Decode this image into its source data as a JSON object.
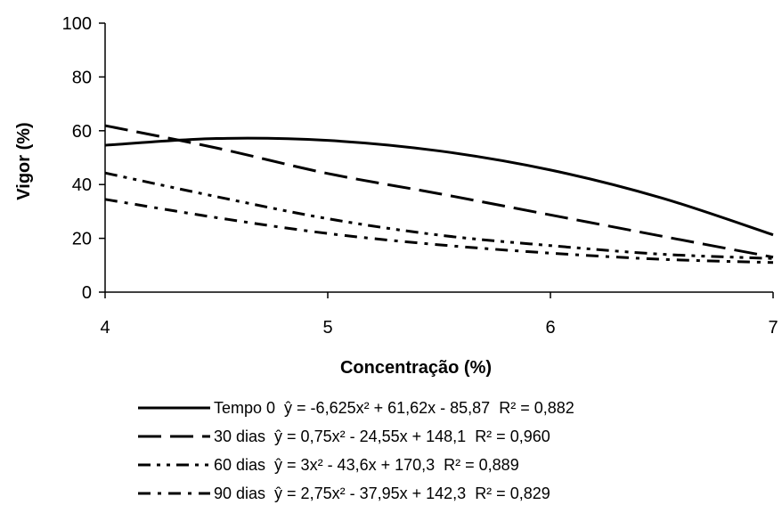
{
  "chart_data": {
    "type": "line",
    "title": "",
    "xlabel": "Concentração (%)",
    "ylabel": "Vigor (%)",
    "xlim": [
      4,
      7
    ],
    "ylim": [
      0,
      100
    ],
    "x_ticks": [
      "4",
      "5",
      "6",
      "7"
    ],
    "y_ticks": [
      "0",
      "20",
      "40",
      "60",
      "80",
      "100"
    ],
    "grid": false,
    "legend_position": "bottom",
    "x": [
      4.0,
      4.5,
      5.0,
      5.5,
      6.0,
      6.5,
      7.0
    ],
    "series": [
      {
        "name": "Tempo 0",
        "equation": "ŷ = -6,625x² + 61,62x - 85,87",
        "r2": "R² = 0,882",
        "dash": "solid",
        "values": [
          54.6,
          57.1,
          56.4,
          52.5,
          45.4,
          35.0,
          21.3
        ]
      },
      {
        "name": "30 dias",
        "equation": "ŷ = 0,75x² - 24,55x + 148,1",
        "r2": "R² = 0,960",
        "dash": "long-dash",
        "values": [
          61.9,
          53.6,
          44.1,
          36.6,
          28.7,
          20.8,
          13.0
        ]
      },
      {
        "name": "60 dias",
        "equation": "ŷ = 3x² - 43,6x + 170,3",
        "r2": "R² = 0,889",
        "dash": "dash-dot-dot",
        "values": [
          44.3,
          35.5,
          27.3,
          21.2,
          17.3,
          14.1,
          12.5
        ]
      },
      {
        "name": "90 dias",
        "equation": "ŷ = 2,75x² - 37,95x + 142,3",
        "r2": "R² = 0,829",
        "dash": "dash-dot",
        "values": [
          34.5,
          27.7,
          21.8,
          17.6,
          14.5,
          12.2,
          11.0
        ]
      }
    ]
  }
}
